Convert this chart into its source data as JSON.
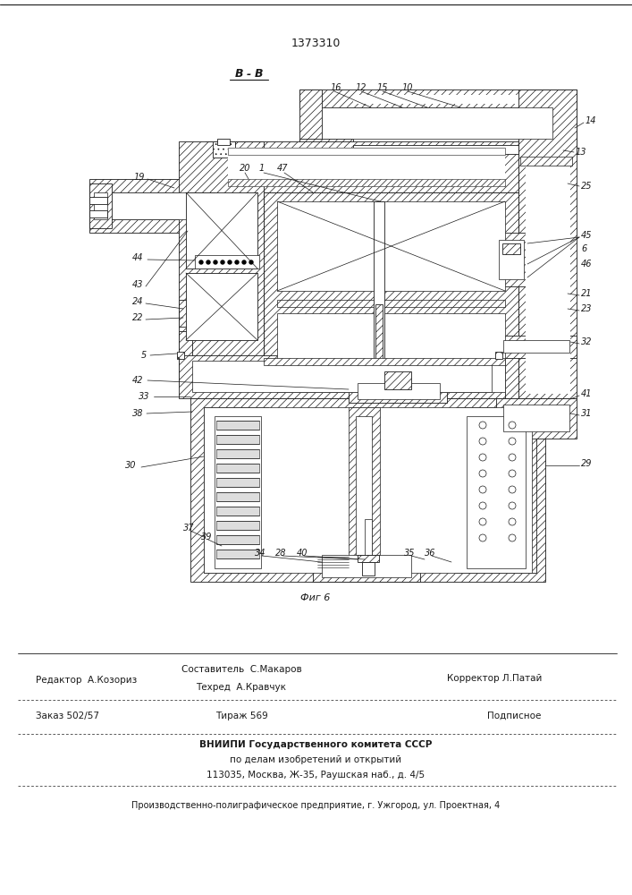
{
  "patent_number": "1373310",
  "bg_color": "#ffffff",
  "line_color": "#1a1a1a",
  "footer": {
    "line1_left": "Редактор  А.Козориз",
    "line1_center": "Составитель  С.Макаров",
    "line1_center2": "Техред  А.Кравчук",
    "line1_right": "Корректор Л.Патай",
    "line2_left": "Заказ 502/57",
    "line2_center": "Тираж 569",
    "line2_right": "Подписное",
    "line3_center": "ВНИИПИ Государственного комитета СССР",
    "line4_center": "по делам изобретений и открытий",
    "line5_center": "113035, Москва, Ж-35, Раушская наб., д. 4/5",
    "line6": "Производственно-полиграфическое предприятие, г. Ужгород, ул. Проектная, 4"
  }
}
